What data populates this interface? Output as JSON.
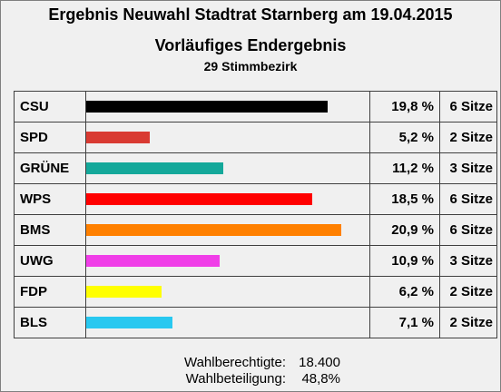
{
  "header": {
    "title": "Ergebnis Neuwahl Stadtrat Starnberg am 19.04.2015",
    "subtitle": "Vorläufiges Endergebnis",
    "subtitle2": "29 Stimmbezirk"
  },
  "chart_data": {
    "type": "bar",
    "orientation": "horizontal",
    "xlim": [
      0,
      23.2
    ],
    "rows": [
      {
        "party": "CSU",
        "value": 19.8,
        "pct_label": "19,8 %",
        "seats_label": "6 Sitze",
        "color": "#000000"
      },
      {
        "party": "SPD",
        "value": 5.2,
        "pct_label": "5,2 %",
        "seats_label": "2 Sitze",
        "color": "#d93a32"
      },
      {
        "party": "GRÜNE",
        "value": 11.2,
        "pct_label": "11,2 %",
        "seats_label": "3 Sitze",
        "color": "#14a89a"
      },
      {
        "party": "WPS",
        "value": 18.5,
        "pct_label": "18,5 %",
        "seats_label": "6 Sitze",
        "color": "#ff0000"
      },
      {
        "party": "BMS",
        "value": 20.9,
        "pct_label": "20,9 %",
        "seats_label": "6 Sitze",
        "color": "#ff8000"
      },
      {
        "party": "UWG",
        "value": 10.9,
        "pct_label": "10,9 %",
        "seats_label": "3 Sitze",
        "color": "#f03ee8"
      },
      {
        "party": "FDP",
        "value": 6.2,
        "pct_label": "6,2 %",
        "seats_label": "2 Sitze",
        "color": "#ffff00"
      },
      {
        "party": "BLS",
        "value": 7.1,
        "pct_label": "7,1 %",
        "seats_label": "2 Sitze",
        "color": "#28c8f0"
      }
    ]
  },
  "footer": {
    "eligible_label": "Wahlberechtigte:",
    "eligible_value": "18.400",
    "turnout_label": "Wahlbeteiligung:",
    "turnout_value": "48,8%"
  }
}
